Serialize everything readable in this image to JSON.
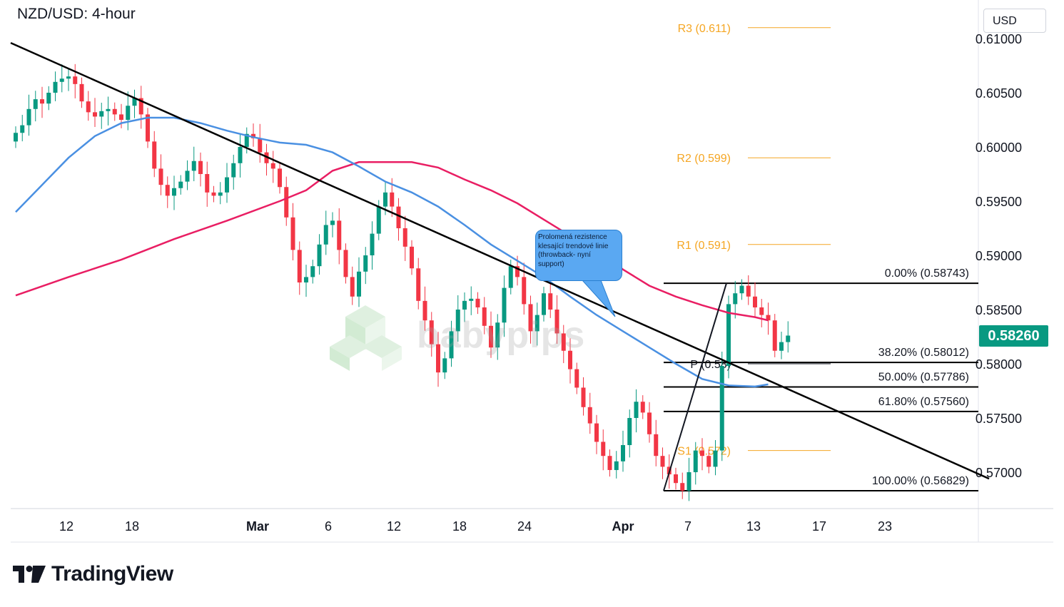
{
  "header": {
    "title": "NZD/USD: 4-hour",
    "currency": "USD"
  },
  "current_price": {
    "label": "0.58260",
    "color": "#089981"
  },
  "annotation": {
    "text": "Prolomená rezistence\nklesající trendové linie\n(throwback- nyní\nsupport)"
  },
  "watermark": {
    "text": "babypips"
  },
  "brand": {
    "name": "TradingView"
  },
  "chart_data": {
    "type": "candlestick",
    "title": "NZD/USD: 4-hour",
    "y_ticks": [
      "0.61000",
      "0.60500",
      "0.60000",
      "0.59500",
      "0.59000",
      "0.58500",
      "0.58000",
      "0.57500",
      "0.57000"
    ],
    "x_ticks": [
      "12",
      "18",
      "Mar",
      "6",
      "12",
      "18",
      "24",
      "Apr",
      "7",
      "13",
      "17",
      "23"
    ],
    "ylim": [
      0.568,
      0.6115
    ],
    "colors": {
      "up": "#089981",
      "down": "#f23645",
      "ma_fast": "#4a90e2",
      "ma_slow": "#e91e63",
      "pivot": "#f5a623",
      "fib": "#000000",
      "trendline": "#000000"
    },
    "pivots": [
      {
        "label": "R3 (0.611)",
        "value": 0.611
      },
      {
        "label": "R2 (0.599)",
        "value": 0.599
      },
      {
        "label": "R1 (0.591)",
        "value": 0.591
      },
      {
        "label": "P (0.58)",
        "value": 0.58
      },
      {
        "label": "S1 (0.572)",
        "value": 0.572
      }
    ],
    "fibonacci": [
      {
        "label": "0.00% (0.58743)",
        "value": 0.58743
      },
      {
        "label": "38.20% (0.58012)",
        "value": 0.58012
      },
      {
        "label": "50.00% (0.57786)",
        "value": 0.57786
      },
      {
        "label": "61.80% (0.57560)",
        "value": 0.5756
      },
      {
        "label": "100.00% (0.56829)",
        "value": 0.56829
      }
    ],
    "trendline": {
      "start": [
        0,
        0.6096
      ],
      "end": [
        148,
        0.5694
      ]
    },
    "ma_fast": [
      [
        0,
        0.594
      ],
      [
        4,
        0.5965
      ],
      [
        8,
        0.599
      ],
      [
        12,
        0.601
      ],
      [
        16,
        0.6022
      ],
      [
        20,
        0.6027
      ],
      [
        24,
        0.6027
      ],
      [
        28,
        0.6022
      ],
      [
        32,
        0.6015
      ],
      [
        36,
        0.6009
      ],
      [
        40,
        0.6004
      ],
      [
        44,
        0.6002
      ],
      [
        48,
        0.5995
      ],
      [
        52,
        0.5982
      ],
      [
        56,
        0.5968
      ],
      [
        60,
        0.5958
      ],
      [
        64,
        0.5945
      ],
      [
        68,
        0.5928
      ],
      [
        72,
        0.591
      ],
      [
        76,
        0.5895
      ],
      [
        80,
        0.588
      ],
      [
        84,
        0.5862
      ],
      [
        88,
        0.5845
      ],
      [
        92,
        0.583
      ],
      [
        96,
        0.5815
      ],
      [
        100,
        0.58
      ],
      [
        104,
        0.5786
      ],
      [
        108,
        0.578
      ],
      [
        112,
        0.5779
      ],
      [
        114,
        0.5781
      ]
    ],
    "ma_slow": [
      [
        0,
        0.5863
      ],
      [
        8,
        0.588
      ],
      [
        16,
        0.5896
      ],
      [
        24,
        0.5915
      ],
      [
        32,
        0.5932
      ],
      [
        40,
        0.595
      ],
      [
        44,
        0.596
      ],
      [
        48,
        0.5978
      ],
      [
        52,
        0.5986
      ],
      [
        56,
        0.5986
      ],
      [
        60,
        0.5986
      ],
      [
        64,
        0.5981
      ],
      [
        68,
        0.597
      ],
      [
        72,
        0.596
      ],
      [
        76,
        0.5948
      ],
      [
        80,
        0.5933
      ],
      [
        84,
        0.5918
      ],
      [
        88,
        0.5905
      ],
      [
        92,
        0.5887
      ],
      [
        96,
        0.5872
      ],
      [
        100,
        0.5862
      ],
      [
        104,
        0.5854
      ],
      [
        108,
        0.5847
      ],
      [
        112,
        0.5843
      ],
      [
        114,
        0.584
      ]
    ],
    "candles_close": [
      0.6013,
      0.602,
      0.6035,
      0.6044,
      0.604,
      0.605,
      0.606,
      0.6063,
      0.6065,
      0.6058,
      0.6042,
      0.6032,
      0.6028,
      0.6033,
      0.6035,
      0.603,
      0.6025,
      0.6038,
      0.6045,
      0.603,
      0.6005,
      0.598,
      0.5965,
      0.5955,
      0.5962,
      0.5968,
      0.5978,
      0.5987,
      0.5975,
      0.5958,
      0.5955,
      0.5958,
      0.5972,
      0.5985,
      0.6,
      0.6012,
      0.6008,
      0.5995,
      0.5985,
      0.598,
      0.5963,
      0.5935,
      0.5905,
      0.5875,
      0.588,
      0.589,
      0.591,
      0.5928,
      0.5932,
      0.5905,
      0.588,
      0.5862,
      0.5885,
      0.59,
      0.592,
      0.5945,
      0.5958,
      0.5945,
      0.5925,
      0.5908,
      0.5888,
      0.5858,
      0.584,
      0.5818,
      0.5792,
      0.5805,
      0.583,
      0.585,
      0.5858,
      0.586,
      0.5852,
      0.5835,
      0.5815,
      0.5838,
      0.587,
      0.589,
      0.588,
      0.5855,
      0.583,
      0.5845,
      0.5865,
      0.585,
      0.5828,
      0.5812,
      0.5795,
      0.5778,
      0.576,
      0.5745,
      0.5728,
      0.5715,
      0.5702,
      0.571,
      0.5725,
      0.575,
      0.5765,
      0.5755,
      0.5735,
      0.5715,
      0.5705,
      0.5698,
      0.569,
      0.5683,
      0.57,
      0.572,
      0.5715,
      0.5705,
      0.572,
      0.5798,
      0.5855,
      0.5865,
      0.5872,
      0.5862,
      0.5852,
      0.5845,
      0.584,
      0.5812,
      0.582,
      0.5826
    ]
  }
}
